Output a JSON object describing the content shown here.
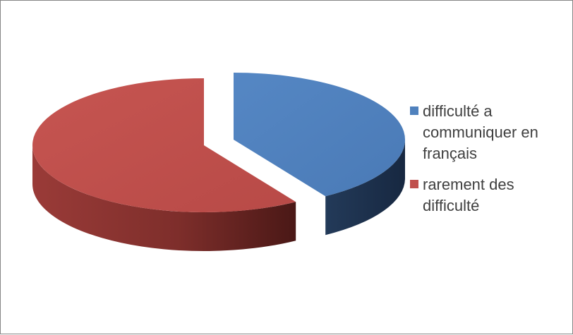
{
  "chart_data": {
    "type": "pie",
    "slices": [
      {
        "label": "difficulté a communiquer en français",
        "value": 41,
        "color": "#4F81BD",
        "exploded": true
      },
      {
        "label": "rarement des difficulté",
        "value": 59,
        "color": "#C0504D",
        "exploded": false
      }
    ],
    "title": "",
    "legend_position": "right",
    "three_d": true
  }
}
